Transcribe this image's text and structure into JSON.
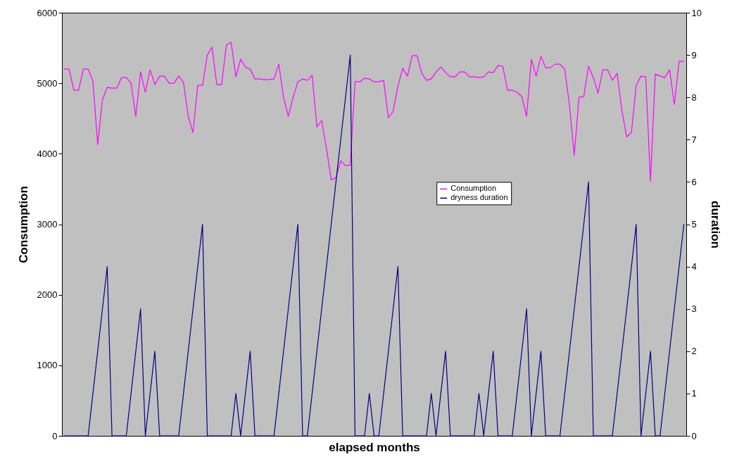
{
  "chart_data": {
    "type": "line",
    "xlabel": "elapsed months",
    "ylabel": "Consumption",
    "y2label": "duration",
    "categories": [
      null,
      null,
      null,
      null,
      null,
      null,
      null,
      null,
      null,
      null,
      null,
      null,
      null,
      null,
      null,
      null,
      null,
      null,
      null,
      null,
      null,
      null,
      null,
      null,
      null,
      null,
      null,
      null,
      null,
      null,
      null,
      null,
      null,
      null,
      null,
      null,
      null,
      null,
      null,
      null,
      null,
      null,
      null,
      null,
      null,
      null,
      null,
      null,
      null,
      null,
      null,
      null,
      null,
      null,
      null,
      null,
      null,
      null,
      null,
      null,
      null,
      null,
      null,
      null,
      null,
      null,
      null,
      null,
      null,
      null,
      null,
      null,
      null,
      null,
      null,
      null,
      null,
      null,
      null,
      null,
      null,
      null,
      null,
      null,
      null,
      null,
      null,
      null,
      null,
      null,
      null,
      null,
      null,
      null,
      null,
      null,
      null,
      null,
      null,
      null,
      null,
      null,
      null,
      null,
      null,
      null,
      null,
      null,
      null,
      null,
      null,
      null,
      null,
      null,
      null,
      null,
      null,
      null,
      null,
      null,
      null,
      null,
      null,
      null,
      null,
      null,
      null,
      null,
      null,
      null,
      null
    ],
    "series": [
      {
        "name": "Consumption",
        "color": "#ff00ff",
        "values": [
          5200,
          5200,
          4900,
          4900,
          5200,
          5200,
          5030,
          4130,
          4770,
          4940,
          4930,
          4930,
          5080,
          5080,
          5000,
          4530,
          5160,
          4870,
          5190,
          4980,
          5100,
          5100,
          5000,
          5000,
          5100,
          5010,
          4530,
          4300,
          4970,
          4970,
          5400,
          5510,
          4980,
          4980,
          5540,
          5580,
          5090,
          5340,
          5230,
          5200,
          5060,
          5060,
          5050,
          5050,
          5060,
          5270,
          4800,
          4530,
          4800,
          5020,
          5060,
          5040,
          5110,
          4380,
          4470,
          4080,
          3630,
          3660,
          3900,
          3830,
          3840,
          5020,
          5020,
          5070,
          5060,
          5020,
          5020,
          5040,
          4510,
          4600,
          4960,
          5210,
          5100,
          5390,
          5390,
          5140,
          5040,
          5060,
          5160,
          5230,
          5150,
          5090,
          5090,
          5160,
          5160,
          5090,
          5090,
          5080,
          5090,
          5160,
          5150,
          5250,
          5240,
          4900,
          4900,
          4870,
          4810,
          4530,
          5340,
          5100,
          5380,
          5220,
          5220,
          5270,
          5270,
          5200,
          4690,
          3980,
          4800,
          4810,
          5240,
          5080,
          4860,
          5190,
          5190,
          5040,
          5140,
          4610,
          4240,
          4300,
          4970,
          5100,
          5090,
          3610,
          5130,
          5100,
          5080,
          5190,
          4700,
          5310,
          5310
        ]
      },
      {
        "name": "dryness duration",
        "color": "#000080",
        "axis": "y2",
        "values": [
          0,
          0,
          0,
          0,
          0,
          0,
          1,
          2,
          3,
          4,
          0,
          0,
          0,
          0,
          1,
          2,
          3,
          0,
          1,
          2,
          0,
          0,
          0,
          0,
          0,
          1,
          2,
          3,
          4,
          5,
          0,
          0,
          0,
          0,
          0,
          0,
          1,
          0,
          1,
          2,
          0,
          0,
          0,
          0,
          0,
          1,
          2,
          3,
          4,
          5,
          0,
          0,
          1,
          2,
          3,
          4,
          5,
          6,
          7,
          8,
          9,
          0,
          0,
          0,
          1,
          0,
          0,
          1,
          2,
          3,
          4,
          0,
          0,
          0,
          0,
          0,
          0,
          1,
          0,
          1,
          2,
          0,
          0,
          0,
          0,
          0,
          0,
          1,
          0,
          1,
          2,
          0,
          0,
          0,
          0,
          1,
          2,
          3,
          0,
          1,
          2,
          0,
          0,
          0,
          0,
          1,
          2,
          3,
          4,
          5,
          6,
          0,
          0,
          0,
          0,
          0,
          1,
          2,
          3,
          4,
          5,
          0,
          1,
          2,
          0,
          0,
          1,
          2,
          3,
          4,
          5
        ]
      }
    ],
    "ylim": [
      0,
      6000
    ],
    "yticks": [
      0,
      1000,
      2000,
      3000,
      4000,
      5000,
      6000
    ],
    "y2lim": [
      0,
      10
    ],
    "y2ticks": [
      0,
      1,
      2,
      3,
      4,
      5,
      6,
      7,
      8,
      9,
      10
    ],
    "grid": false,
    "legend": "right"
  }
}
